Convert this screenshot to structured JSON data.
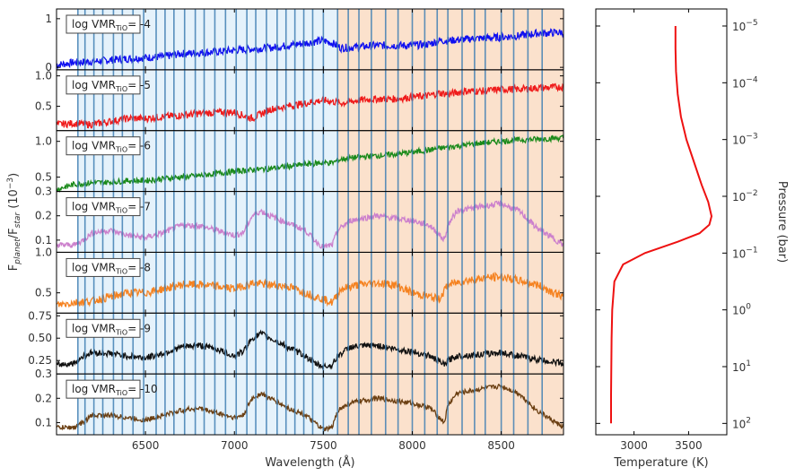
{
  "chart_data": [
    {
      "type": "line",
      "kind": "spectra",
      "ylabel_main": "F",
      "ylabel_sub1": "planet",
      "ylabel_mid": "/F",
      "ylabel_sub2": "star",
      "ylabel_units": " (10",
      "ylabel_exp": "−3",
      "ylabel_close": ")",
      "xlabel": "Wavelength (Å)",
      "xlim": [
        6000,
        8850
      ],
      "xticks": [
        "6500",
        "7000",
        "7500",
        "8000",
        "8500"
      ],
      "xtick_values": [
        6500,
        7000,
        7500,
        8000,
        8500
      ],
      "band_colors": {
        "blue": "#e5f2fb",
        "orange": "#fbe1cc"
      },
      "bands": [
        {
          "from": 6120,
          "to": 7580,
          "color": "blue"
        },
        {
          "from": 7580,
          "to": 8850,
          "color": "orange"
        }
      ],
      "vline_color": "#3f7fb3",
      "vlines": [
        6120,
        6160,
        6210,
        6260,
        6320,
        6370,
        6430,
        6490,
        6560,
        6610,
        6660,
        6720,
        6780,
        6830,
        6890,
        6950,
        7010,
        7070,
        7120,
        7180,
        7240,
        7290,
        7340,
        7390,
        7440,
        7500,
        7580,
        7640,
        7700,
        7770,
        7850,
        7920,
        8000,
        8070,
        8140,
        8200,
        8280,
        8350,
        8410,
        8500,
        8570,
        8650,
        8730
      ],
      "legend_prefix": "log VMR",
      "legend_sub": "TiO",
      "legend_eq": "= ",
      "panels": [
        {
          "label": "-4",
          "color": "#1010f0",
          "ylim": [
            -0.05,
            1.2
          ],
          "yticks": [
            "0",
            "1"
          ],
          "ytick_values": [
            0,
            1
          ],
          "x": [
            6000,
            6100,
            6200,
            6300,
            6400,
            6500,
            6600,
            6700,
            6800,
            6900,
            7000,
            7100,
            7200,
            7300,
            7400,
            7500,
            7550,
            7600,
            7700,
            7800,
            7900,
            8000,
            8100,
            8150,
            8200,
            8300,
            8400,
            8500,
            8600,
            8700,
            8850
          ],
          "y": [
            0.05,
            0.1,
            0.12,
            0.15,
            0.18,
            0.2,
            0.22,
            0.28,
            0.3,
            0.32,
            0.35,
            0.38,
            0.4,
            0.45,
            0.5,
            0.55,
            0.5,
            0.4,
            0.42,
            0.45,
            0.45,
            0.45,
            0.48,
            0.55,
            0.55,
            0.58,
            0.6,
            0.62,
            0.65,
            0.7,
            0.72
          ],
          "noise": 0.08
        },
        {
          "label": "-5",
          "color": "#ef1b1b",
          "ylim": [
            0.1,
            1.1
          ],
          "yticks": [
            "0.5",
            "1.0"
          ],
          "ytick_values": [
            0.5,
            1.0
          ],
          "x": [
            6000,
            6100,
            6200,
            6300,
            6400,
            6500,
            6600,
            6700,
            6800,
            6900,
            7000,
            7100,
            7200,
            7300,
            7400,
            7500,
            7550,
            7600,
            7700,
            7800,
            7900,
            8000,
            8100,
            8150,
            8200,
            8300,
            8400,
            8500,
            8600,
            8700,
            8850
          ],
          "y": [
            0.2,
            0.22,
            0.2,
            0.25,
            0.3,
            0.3,
            0.33,
            0.35,
            0.38,
            0.4,
            0.4,
            0.3,
            0.45,
            0.5,
            0.55,
            0.6,
            0.58,
            0.55,
            0.6,
            0.62,
            0.62,
            0.65,
            0.68,
            0.72,
            0.7,
            0.75,
            0.75,
            0.78,
            0.78,
            0.8,
            0.82
          ],
          "noise": 0.06
        },
        {
          "label": "-6",
          "color": "#1a8a1a",
          "ylim": [
            0.3,
            1.15
          ],
          "yticks": [
            "0.5",
            "1.0"
          ],
          "ytick_values": [
            0.5,
            1.0
          ],
          "x": [
            6000,
            6100,
            6200,
            6300,
            6400,
            6500,
            6600,
            6700,
            6800,
            6900,
            7000,
            7100,
            7200,
            7300,
            7400,
            7500,
            7550,
            7600,
            7700,
            7800,
            7900,
            8000,
            8100,
            8150,
            8200,
            8300,
            8400,
            8500,
            8600,
            8700,
            8850
          ],
          "y": [
            0.33,
            0.4,
            0.42,
            0.43,
            0.45,
            0.45,
            0.48,
            0.5,
            0.52,
            0.55,
            0.58,
            0.6,
            0.62,
            0.65,
            0.68,
            0.7,
            0.7,
            0.75,
            0.78,
            0.8,
            0.82,
            0.85,
            0.88,
            0.9,
            0.92,
            0.95,
            0.98,
            1.0,
            1.02,
            1.03,
            1.05
          ],
          "noise": 0.04
        },
        {
          "label": "-7",
          "color": "#cc80cc",
          "ylim": [
            0.05,
            0.3
          ],
          "yticks": [
            "0.1",
            "0.2",
            "0.3"
          ],
          "ytick_values": [
            0.1,
            0.2,
            0.3
          ],
          "x": [
            6000,
            6100,
            6150,
            6200,
            6300,
            6400,
            6500,
            6600,
            6700,
            6800,
            6900,
            7000,
            7050,
            7100,
            7150,
            7200,
            7300,
            7400,
            7450,
            7500,
            7550,
            7580,
            7650,
            7800,
            7900,
            8000,
            8100,
            8180,
            8200,
            8250,
            8400,
            8500,
            8600,
            8700,
            8850
          ],
          "y": [
            0.08,
            0.08,
            0.1,
            0.13,
            0.14,
            0.12,
            0.11,
            0.13,
            0.16,
            0.16,
            0.14,
            0.12,
            0.13,
            0.2,
            0.22,
            0.2,
            0.17,
            0.14,
            0.1,
            0.07,
            0.08,
            0.14,
            0.18,
            0.2,
            0.19,
            0.18,
            0.16,
            0.1,
            0.16,
            0.22,
            0.24,
            0.25,
            0.22,
            0.15,
            0.08
          ],
          "noise": 0.012
        },
        {
          "label": "-8",
          "color": "#f58220",
          "ylim": [
            0.25,
            1.0
          ],
          "yticks": [
            "0.5",
            "1.0"
          ],
          "ytick_values": [
            0.5,
            1.0
          ],
          "x": [
            6000,
            6100,
            6200,
            6300,
            6400,
            6500,
            6600,
            6700,
            6800,
            6900,
            7000,
            7100,
            7200,
            7300,
            7400,
            7500,
            7550,
            7600,
            7700,
            7800,
            7900,
            8000,
            8100,
            8150,
            8200,
            8300,
            8400,
            8500,
            8600,
            8700,
            8850
          ],
          "y": [
            0.35,
            0.38,
            0.4,
            0.45,
            0.5,
            0.5,
            0.55,
            0.6,
            0.6,
            0.58,
            0.55,
            0.62,
            0.6,
            0.58,
            0.5,
            0.42,
            0.38,
            0.55,
            0.6,
            0.62,
            0.6,
            0.5,
            0.45,
            0.42,
            0.6,
            0.65,
            0.68,
            0.7,
            0.65,
            0.6,
            0.45
          ],
          "noise": 0.05
        },
        {
          "label": "-9",
          "color": "#111111",
          "ylim": [
            0.1,
            0.78
          ],
          "yticks": [
            "0.25",
            "0.50",
            "0.75"
          ],
          "ytick_values": [
            0.25,
            0.5,
            0.75
          ],
          "x": [
            6000,
            6100,
            6150,
            6200,
            6300,
            6400,
            6500,
            6600,
            6700,
            6800,
            6900,
            7000,
            7050,
            7100,
            7150,
            7200,
            7300,
            7400,
            7450,
            7500,
            7550,
            7580,
            7650,
            7800,
            7900,
            8000,
            8100,
            8180,
            8200,
            8250,
            8400,
            8500,
            8600,
            8700,
            8850
          ],
          "y": [
            0.2,
            0.22,
            0.3,
            0.34,
            0.33,
            0.3,
            0.28,
            0.33,
            0.4,
            0.42,
            0.38,
            0.3,
            0.35,
            0.5,
            0.55,
            0.5,
            0.4,
            0.3,
            0.22,
            0.18,
            0.2,
            0.3,
            0.4,
            0.42,
            0.38,
            0.35,
            0.3,
            0.2,
            0.25,
            0.3,
            0.32,
            0.34,
            0.3,
            0.26,
            0.22
          ],
          "noise": 0.035
        },
        {
          "label": "-10",
          "color": "#6b3f12",
          "ylim": [
            0.05,
            0.3
          ],
          "yticks": [
            "0.1",
            "0.2",
            "0.3"
          ],
          "ytick_values": [
            0.1,
            0.2,
            0.3
          ],
          "x": [
            6000,
            6100,
            6150,
            6200,
            6300,
            6400,
            6500,
            6600,
            6700,
            6800,
            6900,
            7000,
            7050,
            7100,
            7150,
            7200,
            7300,
            7400,
            7450,
            7500,
            7550,
            7580,
            7650,
            7800,
            7900,
            8000,
            8100,
            8180,
            8200,
            8250,
            8400,
            8500,
            8600,
            8700,
            8850
          ],
          "y": [
            0.08,
            0.08,
            0.1,
            0.13,
            0.13,
            0.12,
            0.11,
            0.13,
            0.15,
            0.16,
            0.14,
            0.12,
            0.13,
            0.2,
            0.22,
            0.2,
            0.16,
            0.13,
            0.1,
            0.07,
            0.08,
            0.15,
            0.18,
            0.2,
            0.19,
            0.18,
            0.16,
            0.1,
            0.17,
            0.22,
            0.24,
            0.25,
            0.22,
            0.15,
            0.08
          ],
          "noise": 0.01
        }
      ]
    },
    {
      "type": "line",
      "kind": "pt-profile",
      "xlabel": "Temperature (K)",
      "ylabel": "Pressure (bar)",
      "xlim": [
        2650,
        3850
      ],
      "xticks": [
        "3000",
        "3500"
      ],
      "xtick_values": [
        3000,
        3500
      ],
      "ylim_log": [
        -5.3,
        2.2
      ],
      "yscale": "log",
      "ytick_base": "10",
      "ytick_exps": [
        "−5",
        "−4",
        "−3",
        "−2",
        "−1",
        "0",
        "1",
        "2"
      ],
      "ytick_values_log": [
        -5,
        -4,
        -3,
        -2,
        -1,
        0,
        1,
        2
      ],
      "color": "#ee1111",
      "temperature": [
        3380,
        3380,
        3385,
        3400,
        3430,
        3480,
        3550,
        3620,
        3680,
        3710,
        3690,
        3600,
        3400,
        3100,
        2900,
        2820,
        2800,
        2795,
        2790,
        2790
      ],
      "log_pressure": [
        -5.0,
        -4.6,
        -4.2,
        -3.8,
        -3.4,
        -3.0,
        -2.6,
        -2.2,
        -1.9,
        -1.65,
        -1.5,
        -1.35,
        -1.2,
        -1.0,
        -0.8,
        -0.5,
        0.0,
        0.5,
        1.5,
        2.0
      ]
    }
  ]
}
